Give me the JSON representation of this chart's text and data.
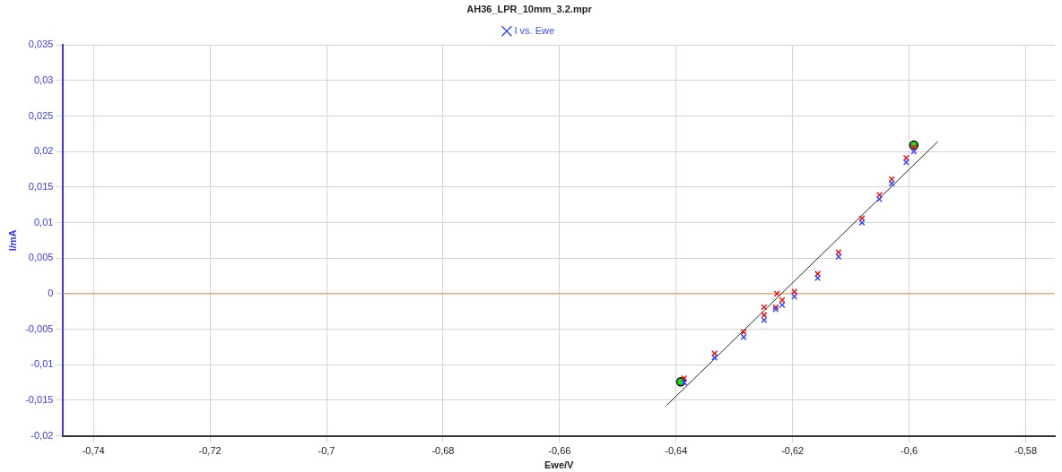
{
  "chart_data": {
    "type": "scatter",
    "title": "AH36_LPR_10mm_3.2.mpr",
    "xlabel": "Ewe/V",
    "ylabel": "I/mA",
    "xlim": [
      -0.7452,
      -0.575
    ],
    "ylim": [
      -0.02,
      0.035
    ],
    "xticks": [
      {
        "value": -0.74,
        "label": "-0,74"
      },
      {
        "value": -0.72,
        "label": "-0,72"
      },
      {
        "value": -0.7,
        "label": "-0,7"
      },
      {
        "value": -0.68,
        "label": "-0,68"
      },
      {
        "value": -0.66,
        "label": "-0,66"
      },
      {
        "value": -0.64,
        "label": "-0,64"
      },
      {
        "value": -0.62,
        "label": "-0,62"
      },
      {
        "value": -0.6,
        "label": "-0,6"
      },
      {
        "value": -0.58,
        "label": "-0,58"
      }
    ],
    "yticks": [
      {
        "value": -0.02,
        "label": "-0,02"
      },
      {
        "value": -0.015,
        "label": "-0,015"
      },
      {
        "value": -0.01,
        "label": "-0,01"
      },
      {
        "value": -0.005,
        "label": "-0,005"
      },
      0,
      {
        "value": 0.005,
        "label": "0,005"
      },
      {
        "value": 0.01,
        "label": "0,01"
      },
      {
        "value": 0.015,
        "label": "0,015"
      },
      {
        "value": 0.02,
        "label": "0,02"
      },
      {
        "value": 0.025,
        "label": "0,025"
      },
      {
        "value": 0.03,
        "label": "0,03"
      },
      {
        "value": 0.035,
        "label": "0,035"
      }
    ],
    "grid": true,
    "legend": "top",
    "marker": "cross",
    "ref_lines": [
      {
        "axis": "y",
        "value": 0,
        "color": "#f0a060"
      }
    ],
    "series": [
      {
        "name": "I vs. Ewe",
        "color": "#3a4cff",
        "x": [
          -0.6386,
          -0.6334,
          -0.6284,
          -0.6249,
          -0.6229,
          -0.6218,
          -0.6197,
          -0.6157,
          -0.6121,
          -0.6081,
          -0.6051,
          -0.603,
          -0.6005,
          -0.5992
        ],
        "values": [
          -0.0125,
          -0.009,
          -0.0061,
          -0.0037,
          -0.0022,
          -0.0016,
          -0.0004,
          0.0022,
          0.0052,
          0.01,
          0.0133,
          0.0155,
          0.0185,
          0.02
        ]
      },
      {
        "color": "#ee1111",
        "x": [
          -0.6386,
          -0.6334,
          -0.6284,
          -0.6249,
          -0.6249,
          -0.6229,
          -0.6227,
          -0.6218,
          -0.6197,
          -0.6157,
          -0.6121,
          -0.6081,
          -0.6051,
          -0.603,
          -0.6005,
          -0.5992
        ],
        "values": [
          -0.0119,
          -0.0084,
          -0.0054,
          -0.003,
          -0.0019,
          -0.0019,
          0,
          -0.0009,
          0.0003,
          0.0028,
          0.0058,
          0.0106,
          0.0139,
          0.0161,
          0.0191,
          0.0206
        ]
      },
      {
        "type": "line",
        "marker": "none",
        "color": "#222222",
        "x": [
          -0.6416,
          -0.5951
        ],
        "values": [
          -0.0157,
          0.0214
        ]
      },
      {
        "color": "#22dd22",
        "marker": "circle",
        "x": [
          -0.6392,
          -0.5992
        ],
        "values": [
          -0.0124,
          0.0209
        ]
      }
    ]
  }
}
